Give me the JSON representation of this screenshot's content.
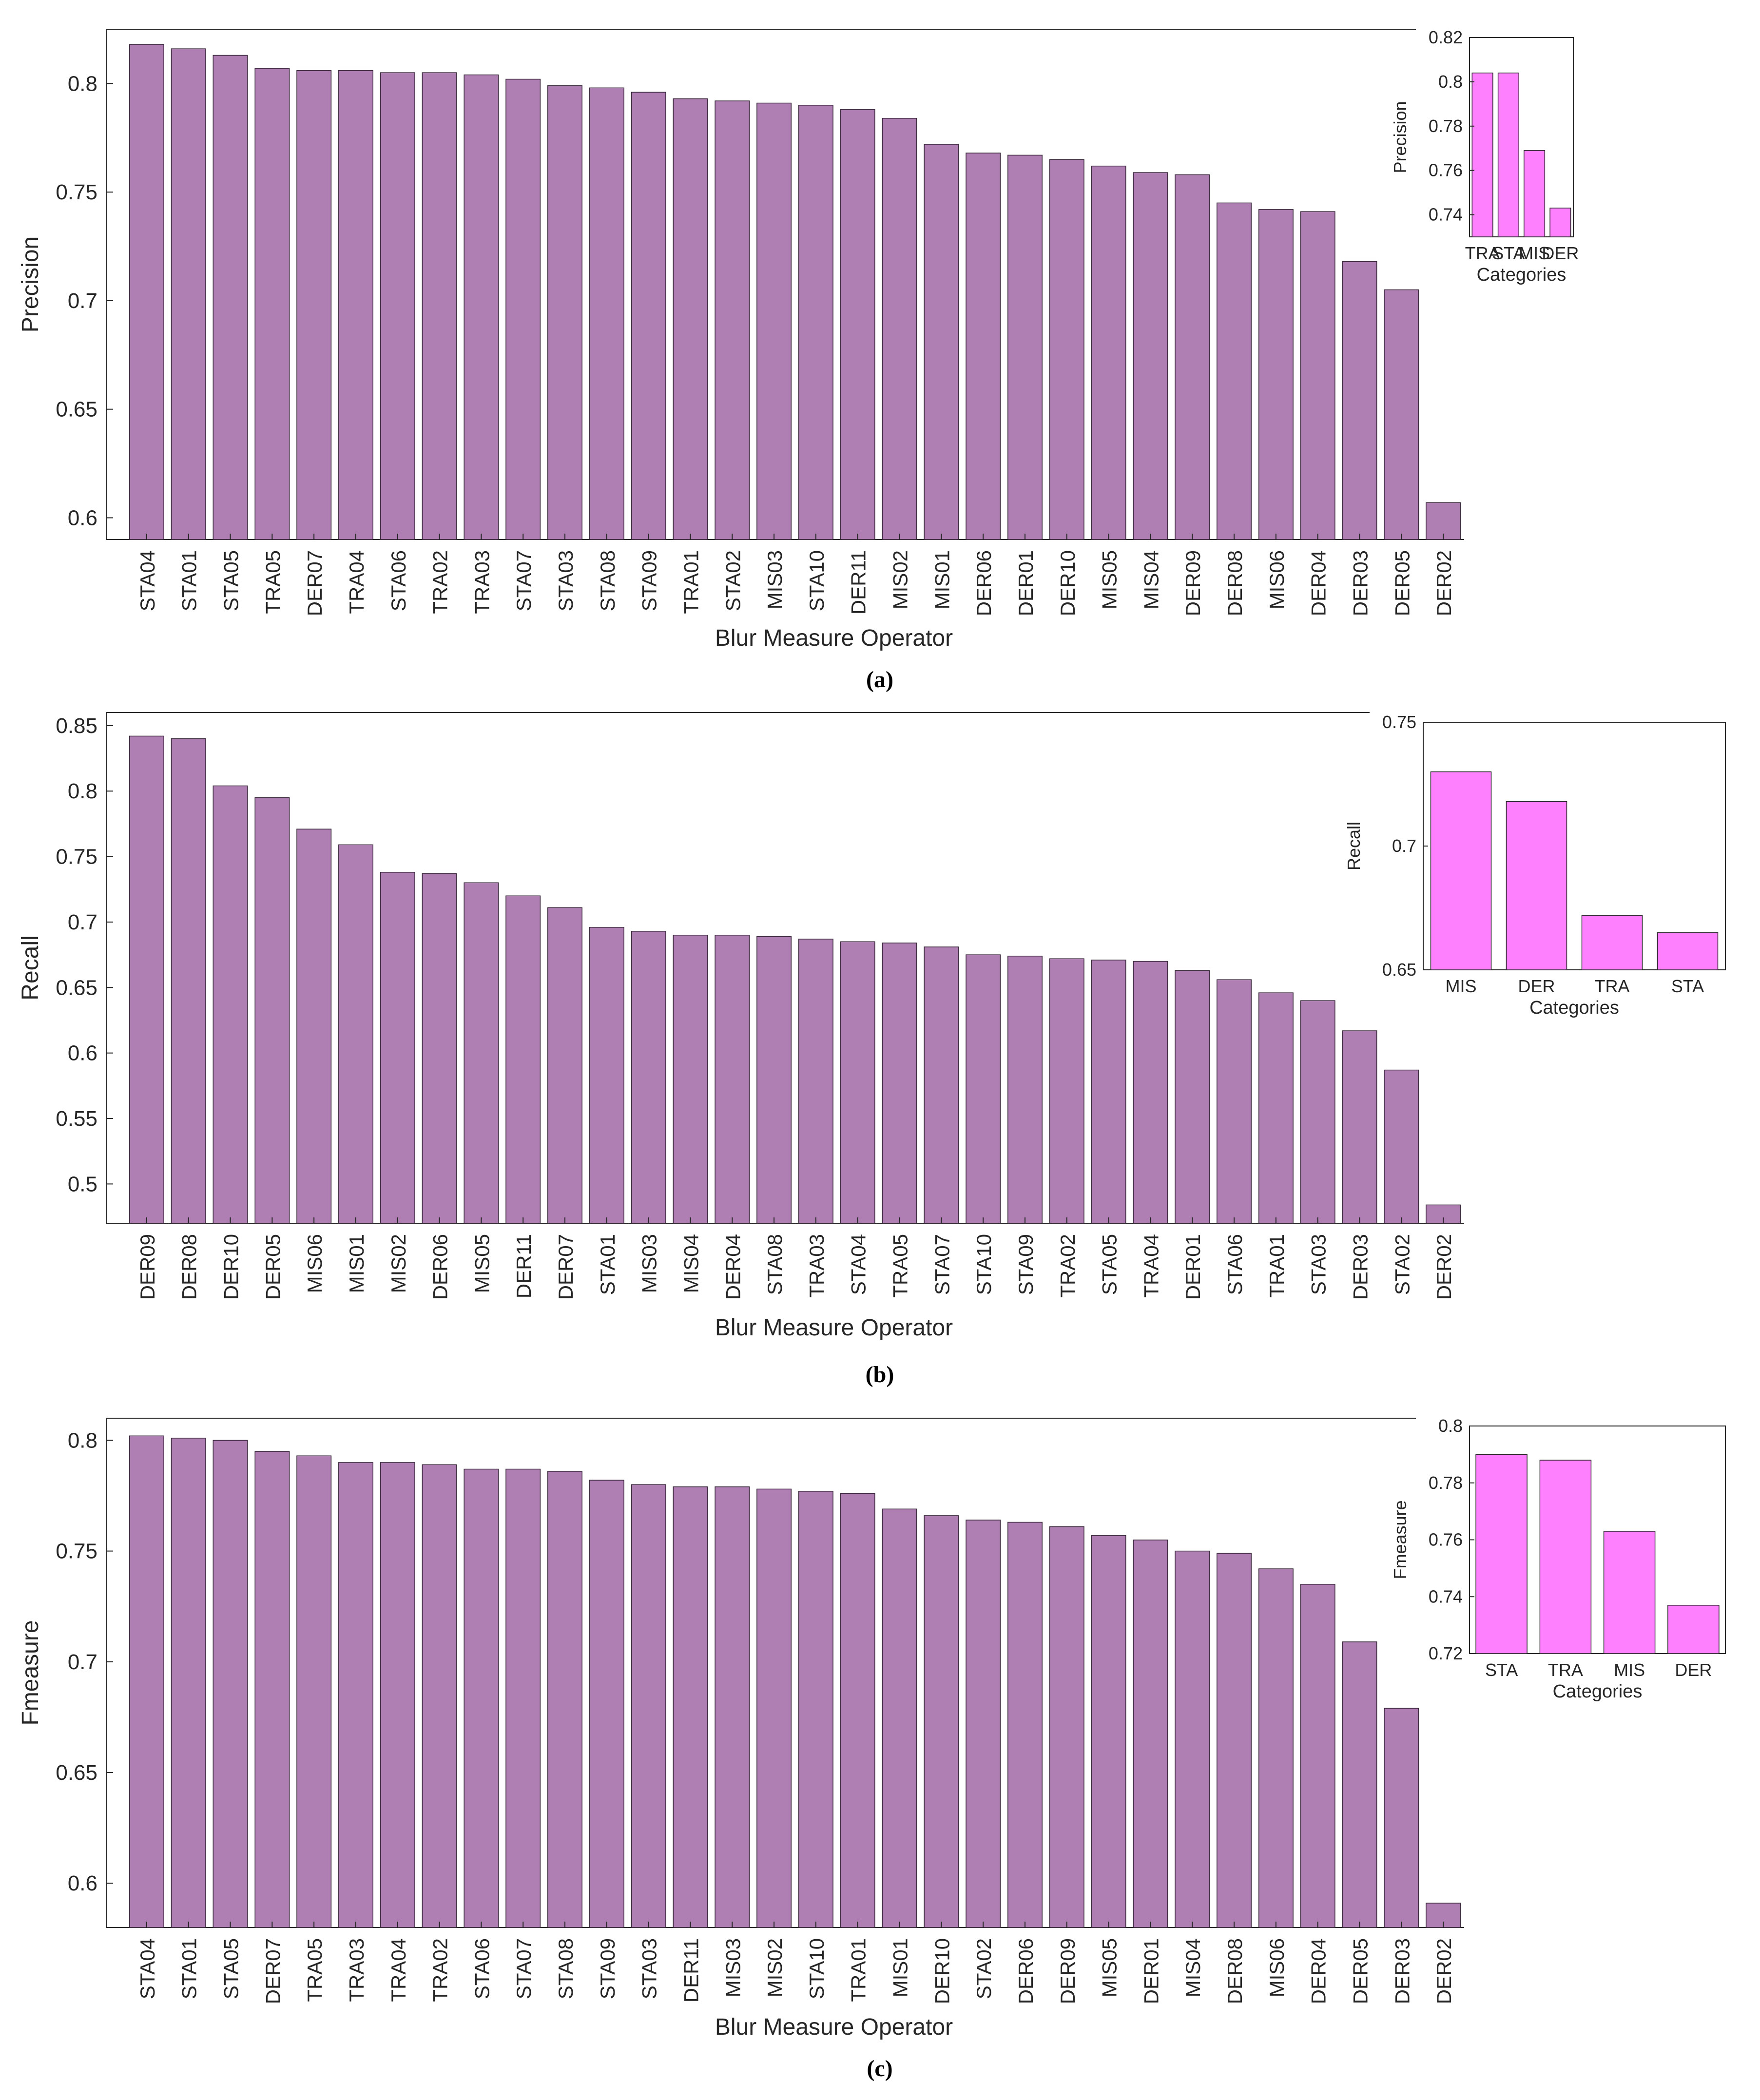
{
  "bar_color": "#af7fb4",
  "inset_bar_color": "#ff80ff",
  "chart_data": [
    {
      "type": "bar",
      "panel_label": "(a)",
      "title": "",
      "xlabel": "Blur Measure Operator",
      "ylabel": "Precision",
      "ylim": [
        0.59,
        0.825
      ],
      "yticks": [
        "0.6",
        "0.65",
        "0.7",
        "0.75",
        "0.8"
      ],
      "categories": [
        "STA04",
        "STA01",
        "STA05",
        "TRA05",
        "DER07",
        "TRA04",
        "STA06",
        "TRA02",
        "TRA03",
        "STA07",
        "STA03",
        "STA08",
        "STA09",
        "TRA01",
        "STA02",
        "MIS03",
        "STA10",
        "DER11",
        "MIS02",
        "MIS01",
        "DER06",
        "DER01",
        "DER10",
        "MIS05",
        "MIS04",
        "DER09",
        "DER08",
        "MIS06",
        "DER04",
        "DER03",
        "DER05",
        "DER02"
      ],
      "values": [
        0.818,
        0.816,
        0.813,
        0.807,
        0.806,
        0.806,
        0.805,
        0.805,
        0.804,
        0.802,
        0.799,
        0.798,
        0.796,
        0.793,
        0.792,
        0.791,
        0.79,
        0.788,
        0.784,
        0.772,
        0.768,
        0.767,
        0.765,
        0.762,
        0.759,
        0.758,
        0.745,
        0.742,
        0.741,
        0.718,
        0.705,
        0.607
      ],
      "inset": {
        "xlabel": "Categories",
        "ylabel": "Precision",
        "ylim": [
          0.73,
          0.82
        ],
        "yticks": [
          "0.74",
          "0.76",
          "0.78",
          "0.8",
          "0.82"
        ],
        "categories": [
          "TRA",
          "STA",
          "MIS",
          "DER"
        ],
        "values": [
          0.804,
          0.804,
          0.769,
          0.743
        ]
      }
    },
    {
      "type": "bar",
      "panel_label": "(b)",
      "title": "",
      "xlabel": "Blur Measure Operator",
      "ylabel": "Recall",
      "ylim": [
        0.47,
        0.86
      ],
      "yticks": [
        "0.5",
        "0.55",
        "0.6",
        "0.65",
        "0.7",
        "0.75",
        "0.8",
        "0.85"
      ],
      "categories": [
        "DER09",
        "DER08",
        "DER10",
        "DER05",
        "MIS06",
        "MIS01",
        "MIS02",
        "DER06",
        "MIS05",
        "DER11",
        "DER07",
        "STA01",
        "MIS03",
        "MIS04",
        "DER04",
        "STA08",
        "TRA03",
        "STA04",
        "TRA05",
        "STA07",
        "STA10",
        "STA09",
        "TRA02",
        "STA05",
        "TRA04",
        "DER01",
        "STA06",
        "TRA01",
        "STA03",
        "DER03",
        "STA02",
        "DER02"
      ],
      "values": [
        0.842,
        0.84,
        0.804,
        0.795,
        0.771,
        0.759,
        0.738,
        0.737,
        0.73,
        0.72,
        0.711,
        0.696,
        0.693,
        0.69,
        0.69,
        0.689,
        0.687,
        0.685,
        0.684,
        0.681,
        0.675,
        0.674,
        0.672,
        0.671,
        0.67,
        0.663,
        0.656,
        0.646,
        0.64,
        0.617,
        0.587,
        0.484
      ],
      "inset": {
        "xlabel": "Categories",
        "ylabel": "Recall",
        "ylim": [
          0.65,
          0.75
        ],
        "yticks": [
          "0.65",
          "0.7",
          "0.75"
        ],
        "categories": [
          "MIS",
          "DER",
          "TRA",
          "STA"
        ],
        "values": [
          0.73,
          0.718,
          0.672,
          0.665
        ]
      }
    },
    {
      "type": "bar",
      "panel_label": "(c)",
      "title": "",
      "xlabel": "Blur Measure Operator",
      "ylabel": "Fmeasure",
      "ylim": [
        0.58,
        0.81
      ],
      "yticks": [
        "0.6",
        "0.65",
        "0.7",
        "0.75",
        "0.8"
      ],
      "categories": [
        "STA04",
        "STA01",
        "STA05",
        "DER07",
        "TRA05",
        "TRA03",
        "TRA04",
        "TRA02",
        "STA06",
        "STA07",
        "STA08",
        "STA09",
        "STA03",
        "DER11",
        "MIS03",
        "MIS02",
        "STA10",
        "TRA01",
        "MIS01",
        "DER10",
        "STA02",
        "DER06",
        "DER09",
        "MIS05",
        "DER01",
        "MIS04",
        "DER08",
        "MIS06",
        "DER04",
        "DER05",
        "DER03",
        "DER02"
      ],
      "values": [
        0.802,
        0.801,
        0.8,
        0.795,
        0.793,
        0.79,
        0.79,
        0.789,
        0.787,
        0.787,
        0.786,
        0.782,
        0.78,
        0.779,
        0.779,
        0.778,
        0.777,
        0.776,
        0.769,
        0.766,
        0.764,
        0.763,
        0.761,
        0.757,
        0.755,
        0.75,
        0.749,
        0.742,
        0.735,
        0.709,
        0.679,
        0.591
      ],
      "inset": {
        "xlabel": "Categories",
        "ylabel": "Fmeasure",
        "ylim": [
          0.72,
          0.8
        ],
        "yticks": [
          "0.72",
          "0.74",
          "0.76",
          "0.78",
          "0.8"
        ],
        "categories": [
          "STA",
          "TRA",
          "MIS",
          "DER"
        ],
        "values": [
          0.79,
          0.788,
          0.763,
          0.737
        ]
      }
    }
  ]
}
